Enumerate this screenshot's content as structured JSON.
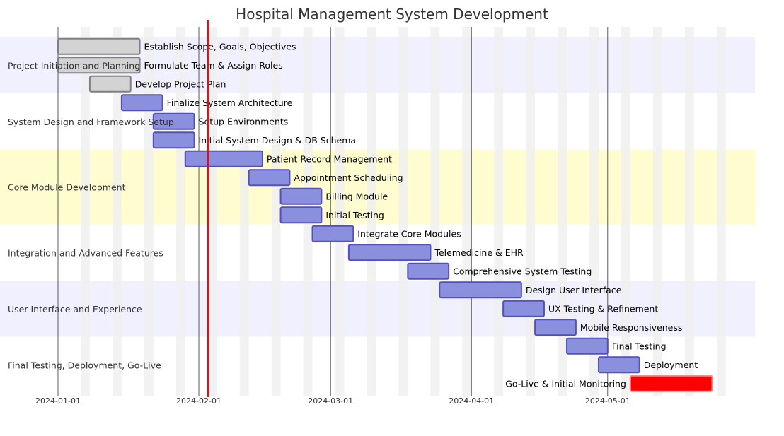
{
  "chart_data": {
    "type": "gantt",
    "title": "Hospital Management System Development",
    "x_ticks": [
      "2024-01-01",
      "2024-02-01",
      "2024-03-01",
      "2024-04-01",
      "2024-05-01"
    ],
    "xlim": [
      "2024-01-01",
      "2024-05-31"
    ],
    "today_marker": "2024-02-03",
    "grid": true,
    "sections": [
      {
        "name": "Project Initiation and Planning",
        "shade": "#f0f0ff",
        "tasks": [
          {
            "name": "Establish Scope, Goals, Objectives",
            "start": "2024-01-01",
            "end": "2024-01-19",
            "status": "done"
          },
          {
            "name": "Formulate Team & Assign Roles",
            "start": "2024-01-01",
            "end": "2024-01-19",
            "status": "done"
          },
          {
            "name": "Develop Project Plan",
            "start": "2024-01-08",
            "end": "2024-01-17",
            "status": "done"
          }
        ]
      },
      {
        "name": "System Design and Framework Setup",
        "shade": "#ffffff",
        "tasks": [
          {
            "name": "Finalize System Architecture",
            "start": "2024-01-15",
            "end": "2024-01-24",
            "status": "active"
          },
          {
            "name": "Setup Environments",
            "start": "2024-01-22",
            "end": "2024-01-31",
            "status": "active"
          },
          {
            "name": "Initial System Design & DB Schema",
            "start": "2024-01-22",
            "end": "2024-01-31",
            "status": "active"
          }
        ]
      },
      {
        "name": "Core Module Development",
        "shade": "#fffdd0",
        "tasks": [
          {
            "name": "Patient Record Management",
            "start": "2024-01-29",
            "end": "2024-02-15",
            "status": "active"
          },
          {
            "name": "Appointment Scheduling",
            "start": "2024-02-12",
            "end": "2024-02-21",
            "status": "active"
          },
          {
            "name": "Billing Module",
            "start": "2024-02-19",
            "end": "2024-02-28",
            "status": "active"
          },
          {
            "name": "Initial Testing",
            "start": "2024-02-19",
            "end": "2024-02-28",
            "status": "active"
          }
        ]
      },
      {
        "name": "Integration and Advanced Features",
        "shade": "#ffffff",
        "tasks": [
          {
            "name": "Integrate Core Modules",
            "start": "2024-02-26",
            "end": "2024-03-06",
            "status": "active"
          },
          {
            "name": "Telemedicine & EHR",
            "start": "2024-03-05",
            "end": "2024-03-23",
            "status": "active"
          },
          {
            "name": "Comprehensive System Testing",
            "start": "2024-03-18",
            "end": "2024-03-27",
            "status": "active"
          }
        ]
      },
      {
        "name": "User Interface and Experience",
        "shade": "#f0f0ff",
        "tasks": [
          {
            "name": "Design User Interface",
            "start": "2024-03-25",
            "end": "2024-04-12",
            "status": "active"
          },
          {
            "name": "UX Testing & Refinement",
            "start": "2024-04-08",
            "end": "2024-04-17",
            "status": "active"
          },
          {
            "name": "Mobile Responsiveness",
            "start": "2024-04-15",
            "end": "2024-04-24",
            "status": "active"
          }
        ]
      },
      {
        "name": "Final Testing, Deployment, Go-Live",
        "shade": "#ffffff",
        "tasks": [
          {
            "name": "Final Testing",
            "start": "2024-04-22",
            "end": "2024-05-01",
            "status": "active"
          },
          {
            "name": "Deployment",
            "start": "2024-04-29",
            "end": "2024-05-08",
            "status": "active"
          },
          {
            "name": "Go-Live & Initial Monitoring",
            "start": "2024-05-06",
            "end": "2024-05-24",
            "status": "critical"
          }
        ]
      }
    ],
    "colors": {
      "done_fill": "#d3d3d3",
      "done_stroke": "#808080",
      "active_fill": "#8a90dd",
      "active_stroke": "#534fbc",
      "critical_fill": "#ff0000",
      "critical_stroke": "#ff8888",
      "today": "#ff0000",
      "weekend_band": "#f0f0f0"
    }
  }
}
